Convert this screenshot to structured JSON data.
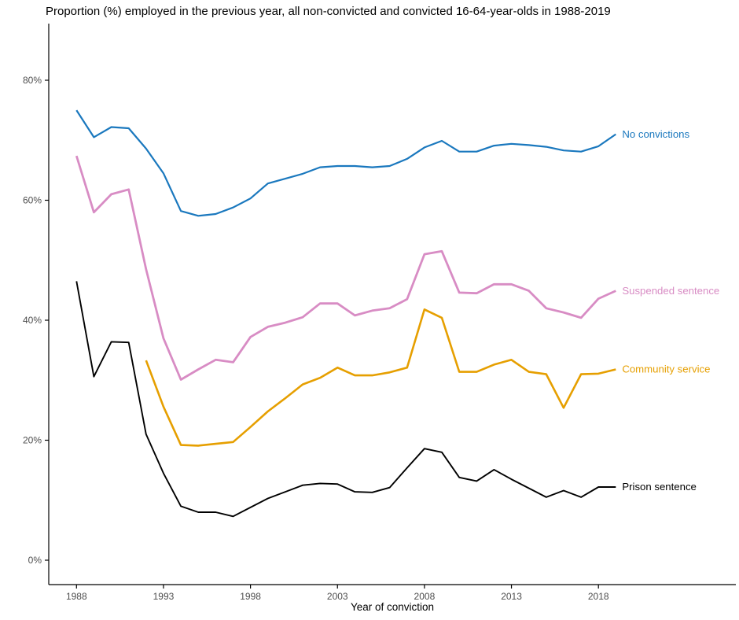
{
  "chart_data": {
    "type": "line",
    "title": "Proportion (%) employed in the previous year, all non-convicted and convicted 16-64-year-olds in 1988-2019",
    "xlabel": "Year of conviction",
    "ylabel": "",
    "x_ticks": [
      1988,
      1993,
      1998,
      2003,
      2008,
      2013,
      2018
    ],
    "x_tick_labels": [
      "1988",
      "1993",
      "1998",
      "2003",
      "2008",
      "2013",
      "2018"
    ],
    "y_ticks": [
      0,
      20,
      40,
      60,
      80
    ],
    "y_tick_labels": [
      "0%",
      "20%",
      "40%",
      "60%",
      "80%"
    ],
    "xlim": [
      1986.4,
      2025.9
    ],
    "ylim": [
      -4,
      89
    ],
    "grid": false,
    "legend_position": "direct-labels-at-line-ends",
    "axis_text_color": "#4d4d4d",
    "axis_line_color": "#000000",
    "series": [
      {
        "name": "No convictions",
        "color": "#1a78be",
        "x": [
          1988,
          1989,
          1990,
          1991,
          1992,
          1993,
          1994,
          1995,
          1996,
          1997,
          1998,
          1999,
          2000,
          2001,
          2002,
          2003,
          2004,
          2005,
          2006,
          2007,
          2008,
          2009,
          2010,
          2011,
          2012,
          2013,
          2014,
          2015,
          2016,
          2017,
          2018,
          2019
        ],
        "values": [
          75.0,
          70.5,
          72.2,
          72.0,
          68.6,
          64.5,
          58.2,
          57.4,
          57.7,
          58.8,
          60.3,
          62.8,
          63.6,
          64.4,
          65.5,
          65.7,
          65.7,
          65.5,
          65.7,
          66.9,
          68.8,
          69.9,
          68.1,
          68.1,
          69.1,
          69.4,
          69.2,
          68.9,
          68.3,
          68.1,
          69.0,
          71.0
        ]
      },
      {
        "name": "Suspended sentence",
        "color": "#d88cc4",
        "x": [
          1988,
          1989,
          1990,
          1991,
          1992,
          1993,
          1994,
          1995,
          1996,
          1997,
          1998,
          1999,
          2000,
          2001,
          2002,
          2003,
          2004,
          2005,
          2006,
          2007,
          2008,
          2009,
          2010,
          2011,
          2012,
          2013,
          2014,
          2015,
          2016,
          2017,
          2018,
          2019
        ],
        "values": [
          67.4,
          58.0,
          61.0,
          61.8,
          48.5,
          37.0,
          30.1,
          31.8,
          33.4,
          33.0,
          37.2,
          38.9,
          39.6,
          40.5,
          42.8,
          42.8,
          40.8,
          41.6,
          42.0,
          43.5,
          51.0,
          51.5,
          44.6,
          44.5,
          46.0,
          46.0,
          44.9,
          42.0,
          41.3,
          40.4,
          43.6,
          44.9
        ]
      },
      {
        "name": "Community service",
        "color": "#e69f00",
        "x": [
          1992,
          1993,
          1994,
          1995,
          1996,
          1997,
          1998,
          1999,
          2000,
          2001,
          2002,
          2003,
          2004,
          2005,
          2006,
          2007,
          2008,
          2009,
          2010,
          2011,
          2012,
          2013,
          2014,
          2015,
          2016,
          2017,
          2018,
          2019
        ],
        "values": [
          33.3,
          25.6,
          19.2,
          19.1,
          19.4,
          19.7,
          22.2,
          24.8,
          27.0,
          29.3,
          30.4,
          32.1,
          30.8,
          30.8,
          31.3,
          32.1,
          41.8,
          40.4,
          31.4,
          31.4,
          32.6,
          33.4,
          31.4,
          31.0,
          25.4,
          31.0,
          31.1,
          31.8
        ]
      },
      {
        "name": "Prison sentence",
        "color": "#000000",
        "x": [
          1988,
          1989,
          1990,
          1991,
          1992,
          1993,
          1994,
          1995,
          1996,
          1997,
          1998,
          1999,
          2000,
          2001,
          2002,
          2003,
          2004,
          2005,
          2006,
          2007,
          2008,
          2009,
          2010,
          2011,
          2012,
          2013,
          2014,
          2015,
          2016,
          2017,
          2018,
          2019
        ],
        "values": [
          46.5,
          30.6,
          36.4,
          36.3,
          21.0,
          14.5,
          9.0,
          8.0,
          8.0,
          7.3,
          8.8,
          10.3,
          11.4,
          12.5,
          12.8,
          12.7,
          11.4,
          11.3,
          12.1,
          15.4,
          18.6,
          18.0,
          13.8,
          13.2,
          15.1,
          13.5,
          12.0,
          10.5,
          11.6,
          10.5,
          12.2,
          12.2
        ]
      }
    ]
  }
}
